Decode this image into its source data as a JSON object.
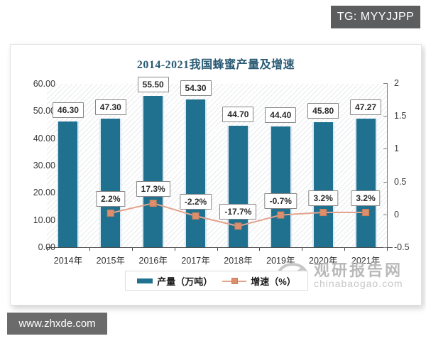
{
  "overlay": {
    "tg_badge": "TG: MYYJJPP",
    "site_badge": "www.zhxde.com"
  },
  "watermark": {
    "name": "观研报告网",
    "domain": "chinabaogao.com"
  },
  "chart_data": {
    "type": "bar+line",
    "title": "2014-2021我国蜂蜜产量及增速",
    "categories": [
      "2014年",
      "2015年",
      "2016年",
      "2017年",
      "2018年",
      "2019年",
      "2020年",
      "2021年"
    ],
    "series": [
      {
        "name": "产量（万吨）",
        "type": "bar",
        "axis": "left",
        "color": "#20718f",
        "values": [
          46.3,
          47.3,
          55.5,
          54.3,
          44.7,
          44.4,
          45.8,
          47.27
        ]
      },
      {
        "name": "增速（%）",
        "type": "line",
        "axis": "right",
        "color": "#dd8f6d",
        "values": [
          null,
          2.2,
          17.3,
          -2.2,
          -17.7,
          -0.7,
          3.2,
          3.2
        ]
      }
    ],
    "left_axis": {
      "min": 0,
      "max": 60,
      "ticks": [
        "60.00",
        "50.00",
        "40.00",
        "30.00",
        "20.00",
        "10.00",
        "0.00"
      ]
    },
    "right_axis": {
      "min": -0.5,
      "max": 2,
      "ticks": [
        "2",
        "1.5",
        "1",
        "0.5",
        "0",
        "-0.5"
      ]
    },
    "legend_position": "bottom",
    "grid": false,
    "plot_background": "diagonal-hatch",
    "bar_label_format": "0.00",
    "line_label_format": "0.0%",
    "line_value_scale": "plotted as value/100 on right axis"
  }
}
